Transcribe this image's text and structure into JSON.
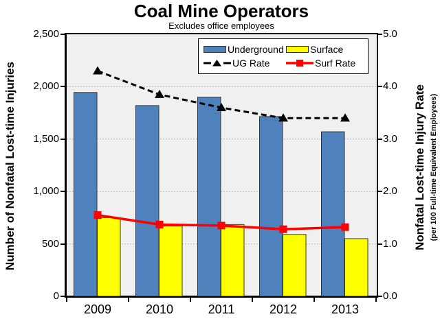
{
  "header": {
    "title": "Coal Mine Operators",
    "subtitle": "Excludes office employees"
  },
  "axes": {
    "left": {
      "title": "Number of Nonfatal Lost-time Injuries",
      "ticks": [
        "2,500",
        "2,000",
        "1,500",
        "1,000",
        "500",
        "0"
      ],
      "values": [
        2500,
        2000,
        1500,
        1000,
        500,
        0
      ]
    },
    "right": {
      "title": "Nonfatal Lost-time Injury Rate",
      "subtitle": "(per 100 Full-time Equivalent Employees)",
      "ticks": [
        "5.0",
        "4.0",
        "3.0",
        "2.0",
        "1.0",
        "0.0"
      ],
      "values": [
        5,
        4,
        3,
        2,
        1,
        0
      ]
    },
    "x": {
      "categories": [
        "2009",
        "2010",
        "2011",
        "2012",
        "2013"
      ]
    }
  },
  "legend": {
    "items": [
      {
        "label": "Underground",
        "icon": "bar-swatch",
        "color": "#4F81BD"
      },
      {
        "label": "Surface",
        "icon": "bar-swatch",
        "color": "#FFFF00"
      },
      {
        "label": "UG Rate",
        "icon": "dashed-line-triangle",
        "color": "#000000"
      },
      {
        "label": "Surf Rate",
        "icon": "solid-line-square",
        "color": "#FF0000"
      }
    ]
  },
  "colors": {
    "underground_bar": "#4F81BD",
    "surface_bar": "#FFFF00",
    "ug_rate_line": "#000000",
    "surf_rate_line": "#FF0000",
    "plot_background": "#F0F0F0",
    "gridline": "#A6A6A6",
    "bar_border": "#333333"
  },
  "chart_data": {
    "type": "bar",
    "subtype": "grouped-bars-with-lines-dual-axis",
    "title": "Coal Mine Operators",
    "subtitle": "Excludes office employees",
    "categories": [
      "2009",
      "2010",
      "2011",
      "2012",
      "2013"
    ],
    "series": [
      {
        "name": "Underground",
        "type": "bar",
        "axis": "left",
        "color": "#4F81BD",
        "values": [
          1945,
          1820,
          1900,
          1715,
          1570
        ]
      },
      {
        "name": "Surface",
        "type": "bar",
        "axis": "left",
        "color": "#FFFF00",
        "values": [
          750,
          670,
          685,
          590,
          550
        ]
      },
      {
        "name": "UG Rate",
        "type": "line",
        "axis": "right",
        "color": "#000000",
        "dashed": true,
        "marker": "triangle",
        "values": [
          4.3,
          3.85,
          3.6,
          3.4,
          3.4
        ]
      },
      {
        "name": "Surf Rate",
        "type": "line",
        "axis": "right",
        "color": "#FF0000",
        "dashed": false,
        "marker": "square",
        "values": [
          1.55,
          1.37,
          1.35,
          1.28,
          1.32
        ]
      }
    ],
    "xlabel": "",
    "ylabel_left": "Number of Nonfatal Lost-time Injuries",
    "ylabel_right": "Nonfatal Lost-time Injury Rate (per 100 Full-time Equivalent Employees)",
    "left_ylim": [
      0,
      2500
    ],
    "right_ylim": [
      0,
      5
    ],
    "grid": true,
    "legend_position": "top-right-inside"
  }
}
